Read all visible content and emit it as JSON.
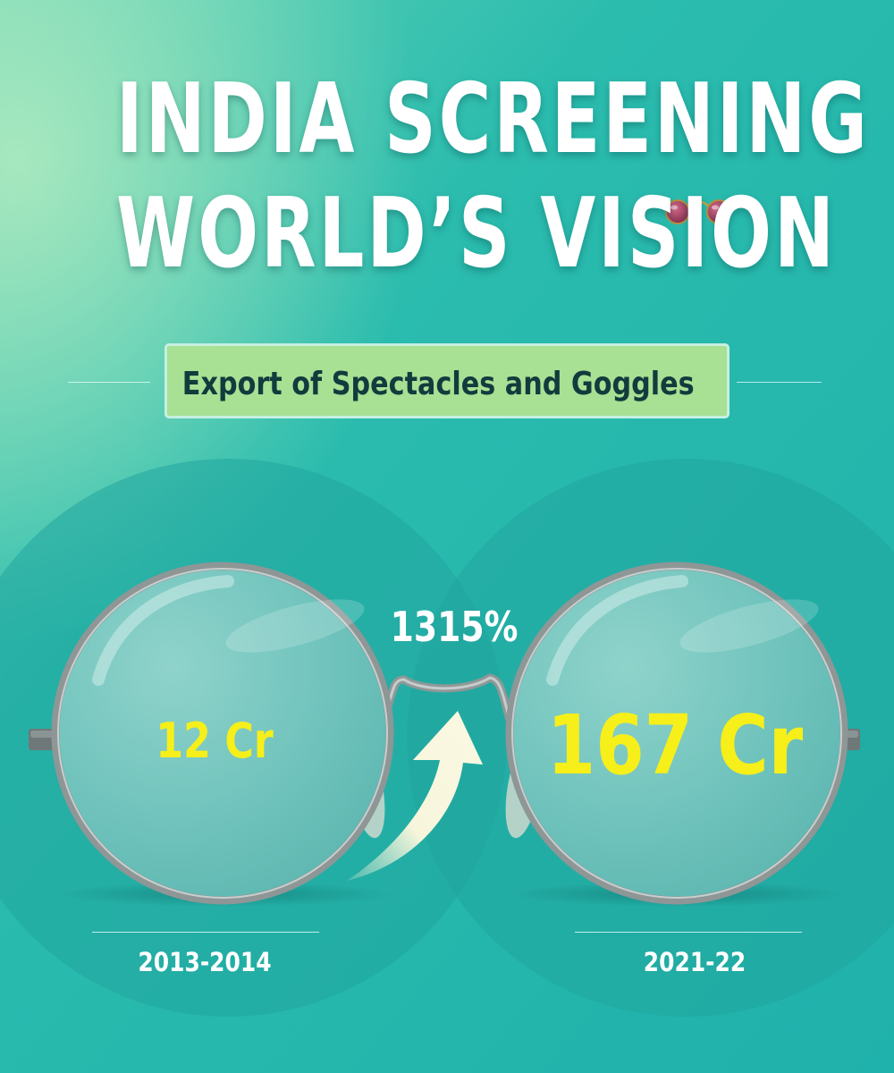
{
  "title": {
    "line1": "INDIA SCREENING",
    "line2": "WORLD’S VISION"
  },
  "subtitle": "Export of Spectacles and Goggles",
  "growth_label": "1315%",
  "values": {
    "before": "12 Cr",
    "after": "167 Cr"
  },
  "years": {
    "before": "2013-2014",
    "after": "2021-22"
  },
  "colors": {
    "background": "#24b5ad",
    "value_text": "#f7ef19",
    "subtitle_box": "#a8e094",
    "subtitle_text": "#123b3d",
    "frame": "#9aa2a3"
  },
  "icons": {
    "title_accent": "sunglasses-icon",
    "growth": "upward-arrow-icon",
    "main_visual": "round-spectacles-icon"
  }
}
